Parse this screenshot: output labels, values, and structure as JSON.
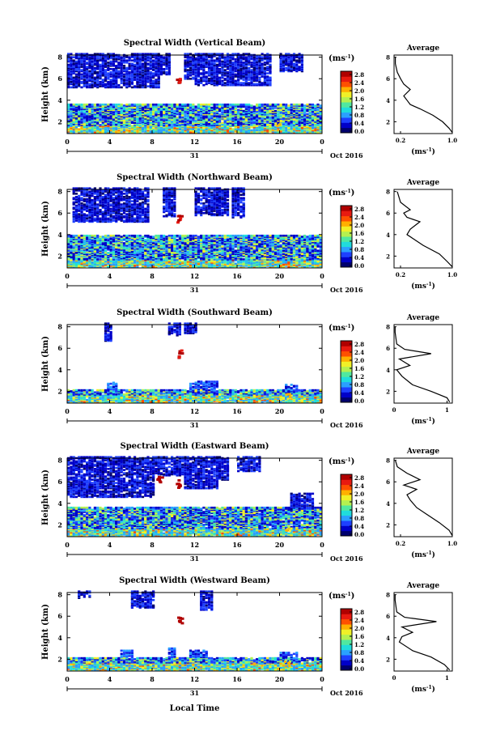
{
  "figure": {
    "xlabel": "Local Time",
    "date_label": "Oct 2016",
    "day_label": "31",
    "ylabel": "Height (km)",
    "unit_label": "(ms",
    "unit_exp": "-1",
    "avg_title": "Average",
    "avg_xlabel": "(ms",
    "colorbar_ticks": [
      "2.8",
      "2.4",
      "2.0",
      "1.6",
      "1.2",
      "0.8",
      "0.4",
      "0.0"
    ],
    "colormap": [
      "#00006e",
      "#0000c8",
      "#1e40ff",
      "#2aa0ff",
      "#20dcdc",
      "#50e8a0",
      "#b4f050",
      "#f0f028",
      "#ffb000",
      "#ff5000",
      "#e81a10",
      "#b00000"
    ]
  },
  "chart_data": [
    {
      "type": "heatmap",
      "title": "Spectral Width (Vertical Beam)",
      "x_ticks": [
        "0",
        "4",
        "8",
        "12",
        "16",
        "20",
        "0"
      ],
      "y_ticks": [
        "2",
        "4",
        "6",
        "8"
      ],
      "xlim": [
        0,
        24
      ],
      "ylim": [
        0.9,
        8.2
      ],
      "colorbar": [
        0.0,
        2.8
      ],
      "avg_profile": {
        "xlim": [
          0.1,
          1.0
        ],
        "x_ticks": [
          "0.2",
          "1.0"
        ],
        "x_tick_values": [
          0.2,
          1.0
        ],
        "y_ticks": [
          "2",
          "4",
          "6",
          "8"
        ]
      }
    },
    {
      "type": "heatmap",
      "title": "Spectral Width (Northward Beam)",
      "x_ticks": [
        "0",
        "4",
        "8",
        "12",
        "16",
        "20",
        "0"
      ],
      "y_ticks": [
        "2",
        "4",
        "6",
        "8"
      ],
      "xlim": [
        0,
        24
      ],
      "ylim": [
        0.9,
        8.2
      ],
      "colorbar": [
        0.0,
        2.8
      ],
      "avg_profile": {
        "xlim": [
          0.1,
          1.0
        ],
        "x_ticks": [
          "0.2",
          "1.0"
        ],
        "x_tick_values": [
          0.2,
          1.0
        ],
        "y_ticks": [
          "2",
          "4",
          "6",
          "8"
        ]
      }
    },
    {
      "type": "heatmap",
      "title": "Spectral Width (Southward Beam)",
      "x_ticks": [
        "0",
        "4",
        "8",
        "12",
        "16",
        "20",
        "0"
      ],
      "y_ticks": [
        "2",
        "4",
        "6",
        "8"
      ],
      "xlim": [
        0,
        24
      ],
      "ylim": [
        0.9,
        8.2
      ],
      "colorbar": [
        0.0,
        2.8
      ],
      "avg_profile": {
        "xlim": [
          0.0,
          1.1
        ],
        "x_ticks": [
          "0",
          "1"
        ],
        "x_tick_values": [
          0,
          1
        ],
        "y_ticks": [
          "2",
          "4",
          "6",
          "8"
        ]
      }
    },
    {
      "type": "heatmap",
      "title": "Spectral Width (Eastward Beam)",
      "x_ticks": [
        "0",
        "4",
        "8",
        "12",
        "16",
        "20",
        "0"
      ],
      "y_ticks": [
        "2",
        "4",
        "6",
        "8"
      ],
      "xlim": [
        0,
        24
      ],
      "ylim": [
        0.9,
        8.2
      ],
      "colorbar": [
        0.0,
        2.8
      ],
      "avg_profile": {
        "xlim": [
          0.1,
          1.0
        ],
        "x_ticks": [
          "0.2",
          "1.0"
        ],
        "x_tick_values": [
          0.2,
          1.0
        ],
        "y_ticks": [
          "2",
          "4",
          "6",
          "8"
        ]
      }
    },
    {
      "type": "heatmap",
      "title": "Spectral Width (Westward Beam)",
      "x_ticks": [
        "0",
        "4",
        "8",
        "12",
        "16",
        "20",
        "0"
      ],
      "y_ticks": [
        "2",
        "4",
        "6",
        "8"
      ],
      "xlim": [
        0,
        24
      ],
      "ylim": [
        0.9,
        8.2
      ],
      "colorbar": [
        0.0,
        2.8
      ],
      "avg_profile": {
        "xlim": [
          0.0,
          1.1
        ],
        "x_ticks": [
          "0",
          "1"
        ],
        "x_tick_values": [
          0,
          1
        ],
        "y_ticks": [
          "2",
          "4",
          "6",
          "8"
        ]
      }
    }
  ]
}
